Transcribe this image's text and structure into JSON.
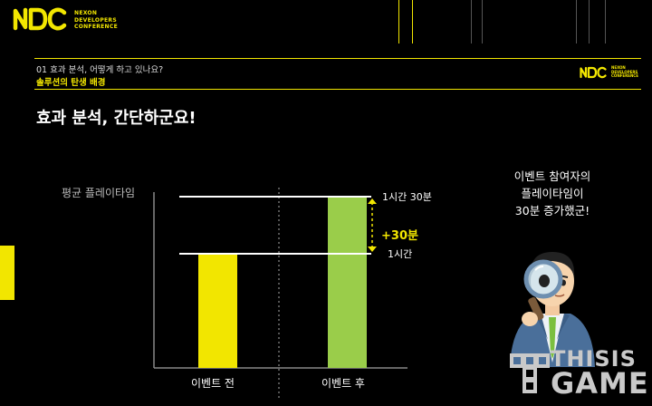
{
  "header": {
    "logo_text": "NDC",
    "logo_sub": [
      "NEXON",
      "DEVELOPERS",
      "CONFERENCE"
    ]
  },
  "slide": {
    "section_number_text": "01 효과 분석, 어떻게 하고 있나요?",
    "section_title": "솔루션의 탄생 배경",
    "heading": "효과 분석, 간단하군요!"
  },
  "chart_data": {
    "type": "bar",
    "ylabel": "평균 플레이타임",
    "categories": [
      "이벤트 전",
      "이벤트 후"
    ],
    "values": [
      60,
      90
    ],
    "value_unit": "minutes",
    "reference_lines": [
      {
        "label": "1시간",
        "value": 60
      },
      {
        "label": "1시간 30분",
        "value": 90
      }
    ],
    "difference_label": "+30분",
    "bar_colors": [
      "#f2e600",
      "#9acd4a"
    ],
    "ylim": [
      0,
      110
    ]
  },
  "speech": {
    "lines": [
      "이벤트 참여자의",
      "플레이타임이",
      "30분 증가했군!"
    ]
  },
  "watermark": {
    "line1": "THISIS",
    "line2": "GAME"
  },
  "colors": {
    "accent": "#f2e600",
    "background": "#000000",
    "bar_after": "#9acd4a"
  }
}
